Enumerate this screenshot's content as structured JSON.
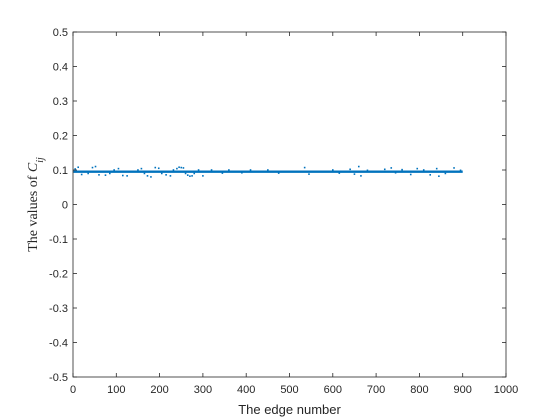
{
  "chart_data": {
    "type": "scatter",
    "title": "",
    "xlabel": "The edge number",
    "ylabel": {
      "prefix": "The values of ",
      "symbol": "C",
      "subscript": "ij"
    },
    "xlim": [
      0,
      1000
    ],
    "ylim": [
      -0.5,
      0.5
    ],
    "xticks": [
      0,
      100,
      200,
      300,
      400,
      500,
      600,
      700,
      800,
      900,
      1000
    ],
    "yticks": [
      -0.5,
      -0.4,
      -0.3,
      -0.2,
      -0.1,
      0,
      0.1,
      0.2,
      0.3,
      0.4,
      0.5
    ],
    "ytick_labels": [
      "-0.5",
      "-0.4",
      "-0.3",
      "-0.2",
      "-0.1",
      "0",
      "0.1",
      "0.2",
      "0.3",
      "0.4",
      "0.5"
    ],
    "grid": false,
    "line": {
      "x_start": 1,
      "x_end": 900,
      "y": 0.095,
      "color": "#0072BD"
    },
    "scatter_color": "#0072BD",
    "scatter_outliers": [
      {
        "x": 5,
        "y": 0.103
      },
      {
        "x": 12,
        "y": 0.108
      },
      {
        "x": 20,
        "y": 0.087
      },
      {
        "x": 35,
        "y": 0.09
      },
      {
        "x": 45,
        "y": 0.107
      },
      {
        "x": 52,
        "y": 0.11
      },
      {
        "x": 60,
        "y": 0.086
      },
      {
        "x": 75,
        "y": 0.085
      },
      {
        "x": 85,
        "y": 0.09
      },
      {
        "x": 95,
        "y": 0.1
      },
      {
        "x": 105,
        "y": 0.104
      },
      {
        "x": 115,
        "y": 0.084
      },
      {
        "x": 125,
        "y": 0.083
      },
      {
        "x": 150,
        "y": 0.1
      },
      {
        "x": 158,
        "y": 0.104
      },
      {
        "x": 165,
        "y": 0.09
      },
      {
        "x": 172,
        "y": 0.083
      },
      {
        "x": 180,
        "y": 0.08
      },
      {
        "x": 190,
        "y": 0.107
      },
      {
        "x": 198,
        "y": 0.105
      },
      {
        "x": 205,
        "y": 0.09
      },
      {
        "x": 215,
        "y": 0.086
      },
      {
        "x": 225,
        "y": 0.083
      },
      {
        "x": 232,
        "y": 0.1
      },
      {
        "x": 240,
        "y": 0.104
      },
      {
        "x": 245,
        "y": 0.108
      },
      {
        "x": 250,
        "y": 0.107
      },
      {
        "x": 255,
        "y": 0.106
      },
      {
        "x": 260,
        "y": 0.09
      },
      {
        "x": 265,
        "y": 0.085
      },
      {
        "x": 270,
        "y": 0.082
      },
      {
        "x": 275,
        "y": 0.083
      },
      {
        "x": 280,
        "y": 0.09
      },
      {
        "x": 290,
        "y": 0.1
      },
      {
        "x": 300,
        "y": 0.083
      },
      {
        "x": 320,
        "y": 0.1
      },
      {
        "x": 345,
        "y": 0.091
      },
      {
        "x": 360,
        "y": 0.1
      },
      {
        "x": 390,
        "y": 0.092
      },
      {
        "x": 410,
        "y": 0.1
      },
      {
        "x": 450,
        "y": 0.1
      },
      {
        "x": 475,
        "y": 0.091
      },
      {
        "x": 535,
        "y": 0.107
      },
      {
        "x": 545,
        "y": 0.088
      },
      {
        "x": 600,
        "y": 0.1
      },
      {
        "x": 615,
        "y": 0.091
      },
      {
        "x": 640,
        "y": 0.102
      },
      {
        "x": 650,
        "y": 0.088
      },
      {
        "x": 660,
        "y": 0.11
      },
      {
        "x": 665,
        "y": 0.083
      },
      {
        "x": 680,
        "y": 0.099
      },
      {
        "x": 720,
        "y": 0.102
      },
      {
        "x": 735,
        "y": 0.106
      },
      {
        "x": 745,
        "y": 0.092
      },
      {
        "x": 760,
        "y": 0.101
      },
      {
        "x": 780,
        "y": 0.087
      },
      {
        "x": 795,
        "y": 0.104
      },
      {
        "x": 810,
        "y": 0.1
      },
      {
        "x": 825,
        "y": 0.086
      },
      {
        "x": 840,
        "y": 0.104
      },
      {
        "x": 845,
        "y": 0.082
      },
      {
        "x": 860,
        "y": 0.09
      },
      {
        "x": 880,
        "y": 0.106
      },
      {
        "x": 895,
        "y": 0.099
      }
    ]
  }
}
